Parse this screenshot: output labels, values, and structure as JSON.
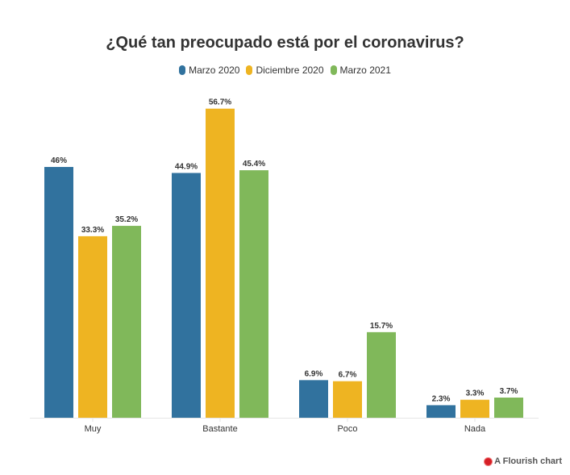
{
  "chart_data": {
    "type": "bar",
    "title": "¿Qué tan preocupado está por el coronavirus?",
    "categories": [
      "Muy",
      "Bastante",
      "Poco",
      "Nada"
    ],
    "series": [
      {
        "name": "Marzo 2020",
        "color": "#31729e",
        "values": [
          46,
          44.9,
          6.9,
          2.3
        ],
        "labels": [
          "46%",
          "44.9%",
          "6.9%",
          "2.3%"
        ]
      },
      {
        "name": "Diciembre 2020",
        "color": "#eeb422",
        "values": [
          33.3,
          56.7,
          6.7,
          3.3
        ],
        "labels": [
          "33.3%",
          "56.7%",
          "6.7%",
          "3.3%"
        ]
      },
      {
        "name": "Marzo 2021",
        "color": "#80b85a",
        "values": [
          35.2,
          45.4,
          15.7,
          3.7
        ],
        "labels": [
          "35.2%",
          "45.4%",
          "15.7%",
          "3.7%"
        ]
      }
    ],
    "xlabel": "",
    "ylabel": "",
    "ylim": [
      0,
      57
    ],
    "grid": false,
    "legend_position": "top-center"
  },
  "footer": {
    "credit": "A Flourish chart"
  }
}
